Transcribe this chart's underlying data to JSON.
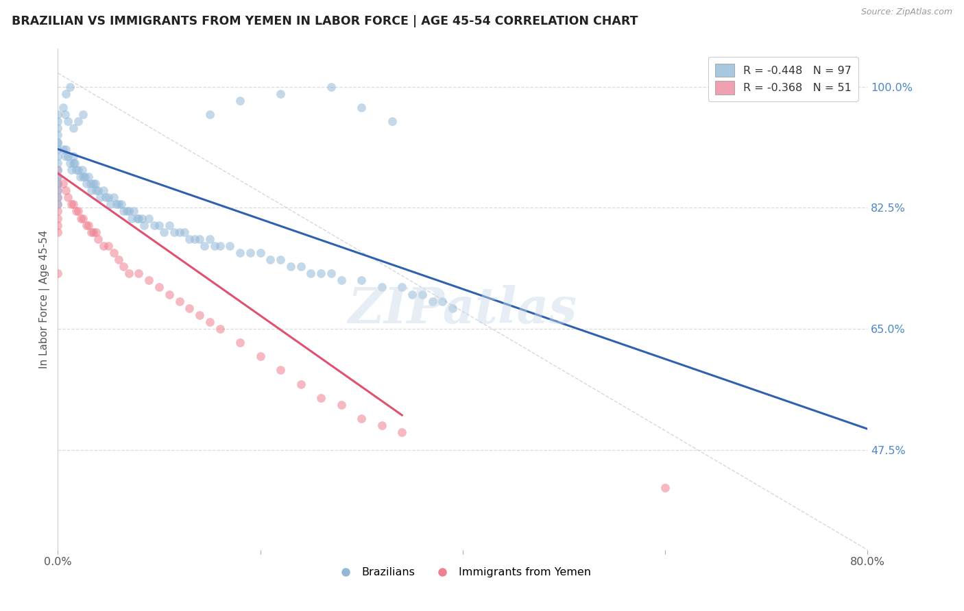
{
  "title": "BRAZILIAN VS IMMIGRANTS FROM YEMEN IN LABOR FORCE | AGE 45-54 CORRELATION CHART",
  "source": "Source: ZipAtlas.com",
  "ylabel": "In Labor Force | Age 45-54",
  "x_min": 0.0,
  "x_max": 0.8,
  "y_min": 0.33,
  "y_max": 1.055,
  "y_ticks": [
    0.475,
    0.65,
    0.825,
    1.0
  ],
  "y_tick_labels": [
    "47.5%",
    "65.0%",
    "82.5%",
    "100.0%"
  ],
  "watermark": "ZIPatlas",
  "brazil_color": "#92b8d8",
  "yemen_color": "#f08090",
  "brazil_line_color": "#3060b0",
  "yemen_line_color": "#e05070",
  "brazil_line": [
    0.0,
    0.91,
    0.8,
    0.505
  ],
  "yemen_line": [
    0.0,
    0.875,
    0.34,
    0.525
  ],
  "dash_line": [
    0.0,
    1.02,
    0.8,
    0.33
  ],
  "brazil_x": [
    0.0,
    0.0,
    0.0,
    0.0,
    0.0,
    0.0,
    0.0,
    0.0,
    0.0,
    0.0,
    0.0,
    0.0,
    0.0,
    0.0,
    0.0,
    0.005,
    0.007,
    0.008,
    0.01,
    0.012,
    0.013,
    0.015,
    0.015,
    0.017,
    0.018,
    0.02,
    0.022,
    0.024,
    0.025,
    0.027,
    0.028,
    0.03,
    0.032,
    0.033,
    0.035,
    0.037,
    0.038,
    0.04,
    0.042,
    0.045,
    0.047,
    0.05,
    0.052,
    0.055,
    0.058,
    0.06,
    0.063,
    0.065,
    0.068,
    0.07,
    0.073,
    0.075,
    0.078,
    0.08,
    0.083,
    0.085,
    0.09,
    0.095,
    0.1,
    0.105,
    0.11,
    0.115,
    0.12,
    0.125,
    0.13,
    0.135,
    0.14,
    0.145,
    0.15,
    0.155,
    0.16,
    0.17,
    0.18,
    0.19,
    0.2,
    0.21,
    0.22,
    0.23,
    0.24,
    0.25,
    0.26,
    0.27,
    0.28,
    0.3,
    0.32,
    0.34,
    0.35,
    0.36,
    0.37,
    0.38,
    0.39,
    0.15,
    0.18,
    0.22,
    0.27,
    0.3,
    0.33
  ],
  "brazil_y": [
    0.96,
    0.95,
    0.94,
    0.93,
    0.92,
    0.92,
    0.91,
    0.9,
    0.89,
    0.88,
    0.87,
    0.86,
    0.85,
    0.84,
    0.83,
    0.91,
    0.9,
    0.91,
    0.9,
    0.89,
    0.88,
    0.9,
    0.89,
    0.89,
    0.88,
    0.88,
    0.87,
    0.88,
    0.87,
    0.87,
    0.86,
    0.87,
    0.86,
    0.85,
    0.86,
    0.86,
    0.85,
    0.85,
    0.84,
    0.85,
    0.84,
    0.84,
    0.83,
    0.84,
    0.83,
    0.83,
    0.83,
    0.82,
    0.82,
    0.82,
    0.81,
    0.82,
    0.81,
    0.81,
    0.81,
    0.8,
    0.81,
    0.8,
    0.8,
    0.79,
    0.8,
    0.79,
    0.79,
    0.79,
    0.78,
    0.78,
    0.78,
    0.77,
    0.78,
    0.77,
    0.77,
    0.77,
    0.76,
    0.76,
    0.76,
    0.75,
    0.75,
    0.74,
    0.74,
    0.73,
    0.73,
    0.73,
    0.72,
    0.72,
    0.71,
    0.71,
    0.7,
    0.7,
    0.69,
    0.69,
    0.68,
    0.96,
    0.98,
    0.99,
    1.0,
    0.97,
    0.95
  ],
  "yemen_x": [
    0.0,
    0.0,
    0.0,
    0.0,
    0.0,
    0.0,
    0.0,
    0.0,
    0.0,
    0.0,
    0.005,
    0.008,
    0.01,
    0.013,
    0.015,
    0.018,
    0.02,
    0.023,
    0.025,
    0.028,
    0.03,
    0.033,
    0.035,
    0.038,
    0.04,
    0.045,
    0.05,
    0.055,
    0.06,
    0.065,
    0.07,
    0.08,
    0.09,
    0.1,
    0.11,
    0.12,
    0.13,
    0.14,
    0.15,
    0.16,
    0.18,
    0.2,
    0.22,
    0.24,
    0.26,
    0.28,
    0.3,
    0.32,
    0.34,
    0.0,
    0.6
  ],
  "yemen_y": [
    0.88,
    0.87,
    0.86,
    0.85,
    0.84,
    0.83,
    0.82,
    0.81,
    0.8,
    0.79,
    0.86,
    0.85,
    0.84,
    0.83,
    0.83,
    0.82,
    0.82,
    0.81,
    0.81,
    0.8,
    0.8,
    0.79,
    0.79,
    0.79,
    0.78,
    0.77,
    0.77,
    0.76,
    0.75,
    0.74,
    0.73,
    0.73,
    0.72,
    0.71,
    0.7,
    0.69,
    0.68,
    0.67,
    0.66,
    0.65,
    0.63,
    0.61,
    0.59,
    0.57,
    0.55,
    0.54,
    0.52,
    0.51,
    0.5,
    0.73,
    0.42
  ],
  "brazil_extra_x": [
    0.005,
    0.007,
    0.01,
    0.015,
    0.02,
    0.025,
    0.008,
    0.012
  ],
  "brazil_extra_y": [
    0.97,
    0.96,
    0.95,
    0.94,
    0.95,
    0.96,
    0.99,
    1.0
  ]
}
